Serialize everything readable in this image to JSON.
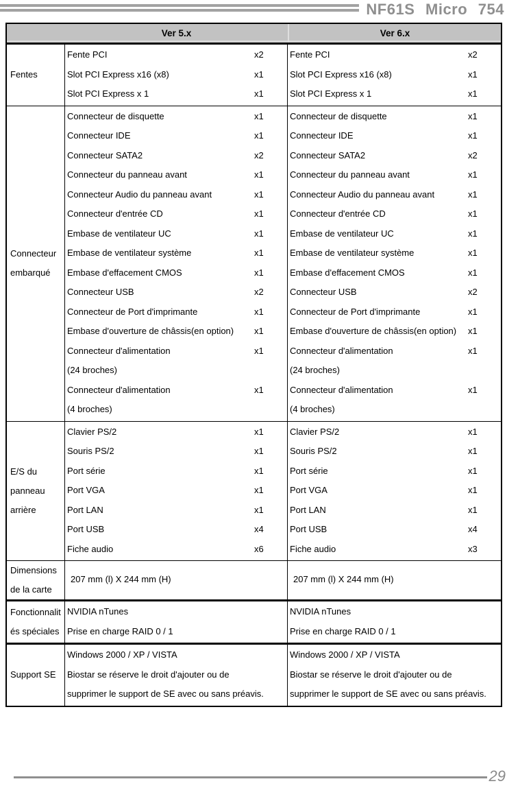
{
  "page": {
    "brand_title": "NF61S Micro 754",
    "page_number": "29"
  },
  "table": {
    "header": {
      "col_ver5": "Ver 5.x",
      "col_ver6": "Ver 6.x"
    },
    "colors": {
      "header_fill": "#c2c2c2",
      "border": "#000000",
      "brand_gray": "#8f8f8f"
    },
    "sections": [
      {
        "label": "Fentes",
        "ver5": [
          {
            "item": "Fente PCI",
            "qty": "x2"
          },
          {
            "item": "Slot PCI Express x16 (x8)",
            "qty": "x1"
          },
          {
            "item": "Slot PCI Express x 1",
            "qty": "x1"
          }
        ],
        "ver6": [
          {
            "item": "Fente PCI",
            "qty": "x2"
          },
          {
            "item": "Slot PCI Express x16 (x8)",
            "qty": "x1"
          },
          {
            "item": "Slot PCI Express x 1",
            "qty": "x1"
          }
        ]
      },
      {
        "label": "Connecteur embarqué",
        "ver5": [
          {
            "item": "Connecteur de disquette",
            "qty": "x1"
          },
          {
            "item": "Connecteur IDE",
            "qty": "x1"
          },
          {
            "item": "Connecteur SATA2",
            "qty": "x2"
          },
          {
            "item": "Connecteur du panneau avant",
            "qty": "x1"
          },
          {
            "item": "Connecteur Audio du panneau avant",
            "qty": "x1"
          },
          {
            "item": "Connecteur d'entrée CD",
            "qty": "x1"
          },
          {
            "item": "Embase de ventilateur UC",
            "qty": "x1"
          },
          {
            "item": "Embase de ventilateur système",
            "qty": "x1"
          },
          {
            "item": "Embase d'effacement CMOS",
            "qty": "x1"
          },
          {
            "item": "Connecteur USB",
            "qty": "x2"
          },
          {
            "item": "Connecteur de Port d'imprimante",
            "qty": "x1"
          },
          {
            "item": "Embase d'ouverture de châssis(en option)",
            "qty": "x1"
          },
          {
            "item": "Connecteur d'alimentation",
            "qty": "x1"
          },
          {
            "item": "(24 broches)",
            "qty": ""
          },
          {
            "item": "Connecteur d'alimentation",
            "qty": "x1"
          },
          {
            "item": "(4 broches)",
            "qty": ""
          }
        ],
        "ver6": [
          {
            "item": "Connecteur de disquette",
            "qty": "x1"
          },
          {
            "item": "Connecteur IDE",
            "qty": "x1"
          },
          {
            "item": "Connecteur SATA2",
            "qty": "x2"
          },
          {
            "item": "Connecteur du panneau avant",
            "qty": "x1"
          },
          {
            "item": "Connecteur Audio du panneau avant",
            "qty": "x1"
          },
          {
            "item": "Connecteur d'entrée CD",
            "qty": "x1"
          },
          {
            "item": "Embase de ventilateur UC",
            "qty": "x1"
          },
          {
            "item": "Embase de ventilateur système",
            "qty": "x1"
          },
          {
            "item": "Embase d'effacement CMOS",
            "qty": "x1"
          },
          {
            "item": "Connecteur USB",
            "qty": "x2"
          },
          {
            "item": "Connecteur de Port d'imprimante",
            "qty": "x1"
          },
          {
            "item": "Embase d'ouverture de châssis(en option)",
            "qty": "x1"
          },
          {
            "item": "Connecteur d'alimentation",
            "qty": "x1"
          },
          {
            "item": "(24 broches)",
            "qty": ""
          },
          {
            "item": "Connecteur d'alimentation",
            "qty": "x1"
          },
          {
            "item": "(4 broches)",
            "qty": ""
          }
        ]
      },
      {
        "label": "E/S du panneau arrière",
        "ver5": [
          {
            "item": "Clavier PS/2",
            "qty": "x1"
          },
          {
            "item": "Souris PS/2",
            "qty": "x1"
          },
          {
            "item": "Port série",
            "qty": "x1"
          },
          {
            "item": "Port VGA",
            "qty": "x1"
          },
          {
            "item": "Port LAN",
            "qty": "x1"
          },
          {
            "item": "Port USB",
            "qty": "x4"
          },
          {
            "item": "Fiche audio",
            "qty": "x6"
          }
        ],
        "ver6": [
          {
            "item": "Clavier PS/2",
            "qty": "x1"
          },
          {
            "item": "Souris PS/2",
            "qty": "x1"
          },
          {
            "item": "Port série",
            "qty": "x1"
          },
          {
            "item": "Port VGA",
            "qty": "x1"
          },
          {
            "item": "Port LAN",
            "qty": "x1"
          },
          {
            "item": "Port USB",
            "qty": "x4"
          },
          {
            "item": "Fiche audio",
            "qty": "x3"
          }
        ]
      },
      {
        "label": "Dimensions de la carte",
        "ver5": [
          {
            "item": "207 mm (l) X 244 mm (H)",
            "qty": ""
          }
        ],
        "ver6": [
          {
            "item": "207 mm (l) X 244 mm (H)",
            "qty": ""
          }
        ]
      },
      {
        "label": "Fonctionnalités spéciales",
        "ver5": [
          {
            "item": "NVIDIA nTunes",
            "qty": ""
          },
          {
            "item": "Prise en charge RAID 0 / 1",
            "qty": ""
          }
        ],
        "ver6": [
          {
            "item": "NVIDIA nTunes",
            "qty": ""
          },
          {
            "item": "Prise en charge RAID 0 / 1",
            "qty": ""
          }
        ]
      },
      {
        "label": "Support SE",
        "ver5": [
          {
            "item": "Windows 2000 / XP / VISTA",
            "qty": ""
          },
          {
            "item": "Biostar se réserve le droit d'ajouter ou de",
            "qty": ""
          },
          {
            "item": "supprimer le support de SE avec ou sans préavis.",
            "qty": ""
          }
        ],
        "ver6": [
          {
            "item": "Windows 2000 / XP / VISTA",
            "qty": ""
          },
          {
            "item": "Biostar se réserve le droit d'ajouter ou de",
            "qty": ""
          },
          {
            "item": "supprimer le support de SE avec ou sans préavis.",
            "qty": ""
          }
        ]
      }
    ]
  }
}
